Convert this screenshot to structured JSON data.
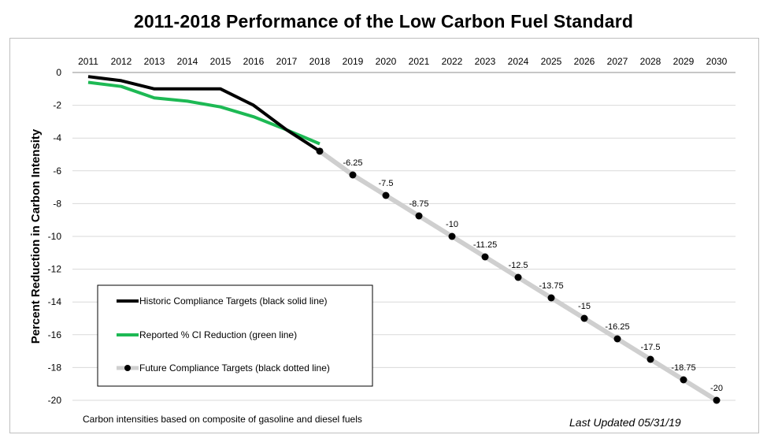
{
  "page": {
    "title": "2011-2018 Performance of the Low Carbon Fuel Standard",
    "footnote": "Carbon intensities based on composite of gasoline and diesel fuels",
    "last_updated": "Last Updated 05/31/19"
  },
  "chart_data": {
    "type": "line",
    "title": "2011-2018 Performance of the Low Carbon Fuel Standard",
    "xlabel": "",
    "ylabel": "Percent Reduction in Carbon Intensity",
    "x": [
      2011,
      2012,
      2013,
      2014,
      2015,
      2016,
      2017,
      2018,
      2019,
      2020,
      2021,
      2022,
      2023,
      2024,
      2025,
      2026,
      2027,
      2028,
      2029,
      2030
    ],
    "ylim": [
      -20,
      0
    ],
    "yticks": [
      0,
      -2,
      -4,
      -6,
      -8,
      -10,
      -12,
      -14,
      -16,
      -18,
      -20
    ],
    "x_axis_position": "top",
    "grid": true,
    "legend_position": "bottom-left",
    "series": [
      {
        "name": "Historic Compliance Targets (black solid line)",
        "color": "#000000",
        "style": "solid",
        "x": [
          2011,
          2012,
          2013,
          2014,
          2015,
          2016,
          2017,
          2018
        ],
        "values": [
          -0.25,
          -0.5,
          -1.0,
          -1.0,
          -1.0,
          -2.0,
          -3.5,
          -4.8
        ]
      },
      {
        "name": "Reported % CI Reduction (green line)",
        "color": "#1db954",
        "style": "solid",
        "x": [
          2011,
          2012,
          2013,
          2014,
          2015,
          2016,
          2017,
          2018
        ],
        "values": [
          -0.6,
          -0.85,
          -1.55,
          -1.75,
          -2.1,
          -2.7,
          -3.5,
          -4.35
        ]
      },
      {
        "name": "Future Compliance Targets (black dotted line)",
        "color": "#cfcfcf",
        "marker_color": "#000000",
        "style": "markers",
        "x": [
          2018,
          2019,
          2020,
          2021,
          2022,
          2023,
          2024,
          2025,
          2026,
          2027,
          2028,
          2029,
          2030
        ],
        "values": [
          -4.8,
          -6.25,
          -7.5,
          -8.75,
          -10,
          -11.25,
          -12.5,
          -13.75,
          -15,
          -16.25,
          -17.5,
          -18.75,
          -20
        ],
        "labels": [
          "",
          "-6.25",
          "-7.5",
          "-8.75",
          "-10",
          "-11.25",
          "-12.5",
          "-13.75",
          "-15",
          "-16.25",
          "-17.5",
          "-18.75",
          "-20"
        ]
      }
    ]
  }
}
